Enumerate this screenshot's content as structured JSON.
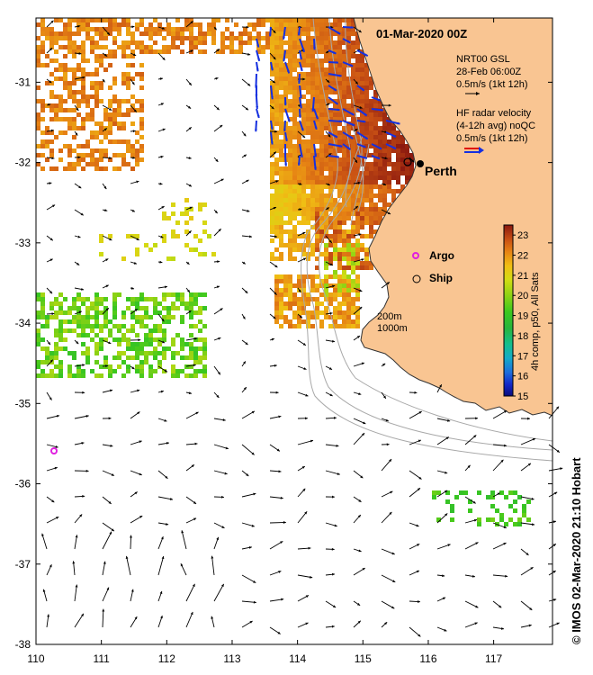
{
  "title": "01-Mar-2020 00Z",
  "legend": {
    "model_lines": [
      "NRT00 GSL",
      "28-Feb 06:00Z",
      "0.5m/s (1kt 12h)"
    ],
    "radar_lines": [
      "HF radar velocity",
      "(4-12h avg) noQC",
      "0.5m/s (1kt 12h)"
    ]
  },
  "places": {
    "city": "Perth",
    "argo": "Argo",
    "ship": "Ship"
  },
  "isobaths": [
    "200m",
    "1000m"
  ],
  "colorbar": {
    "min": 15,
    "max": 23.5,
    "ticks": [
      15,
      16,
      17,
      18,
      19,
      20,
      21,
      22,
      23
    ],
    "label": "4h comp, p50, All Sats"
  },
  "axes": {
    "x_ticks": [
      110,
      111,
      112,
      113,
      114,
      115,
      116,
      117
    ],
    "y_ticks": [
      -31,
      -32,
      -33,
      -34,
      -35,
      -36,
      -37,
      -38
    ],
    "lon_range": [
      110,
      117.9
    ],
    "lat_range": [
      -38,
      -30.2
    ]
  },
  "credit": "© IMOS 02-Mar-2020 21:10 Hobart",
  "colors": {
    "land": "#F9C592",
    "coast": "#333333",
    "isobath": "#a8a8a8",
    "radar_arrow": "#1530e0",
    "argo": "#e020e0",
    "model_arrow": "#000000"
  }
}
